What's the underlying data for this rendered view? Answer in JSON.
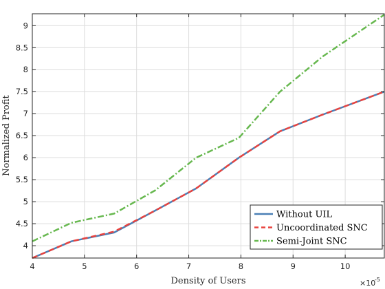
{
  "chart_data": {
    "type": "line",
    "title": "",
    "xlabel": "Density of Users",
    "ylabel": "Normalized Profit",
    "x_exponent": {
      "base": "×10",
      "power": "-5"
    },
    "xlim": [
      4,
      10.75
    ],
    "ylim": [
      3.72,
      9.27
    ],
    "xticks": [
      4,
      5,
      6,
      7,
      8,
      9,
      10
    ],
    "yticks": [
      4,
      4.5,
      5,
      5.5,
      6,
      6.5,
      7,
      7.5,
      8,
      8.5,
      9
    ],
    "ytick_labels": [
      "4",
      "4.5",
      "5",
      "5.5",
      "6",
      "6.5",
      "7",
      "7.5",
      "8",
      "8.5",
      "9"
    ],
    "grid": true,
    "legend_position": "bottom-right",
    "x": [
      4,
      4.75,
      5.57,
      6.36,
      7.14,
      7.96,
      8.75,
      9.57,
      10.75
    ],
    "series": [
      {
        "name": "Without UIL",
        "color": "#4a7fb5",
        "dash": "solid",
        "values": [
          3.72,
          4.1,
          4.3,
          4.8,
          5.3,
          6.0,
          6.6,
          6.98,
          7.5
        ]
      },
      {
        "name": "Uncoordinated SNC",
        "color": "#e8433f",
        "dash": "dashed",
        "values": [
          3.72,
          4.1,
          4.32,
          4.8,
          5.3,
          6.0,
          6.6,
          6.98,
          7.5
        ]
      },
      {
        "name": "Semi-Joint SNC",
        "color": "#67b84f",
        "dash": "dashdot",
        "values": [
          4.1,
          4.52,
          4.73,
          5.26,
          6.0,
          6.45,
          7.5,
          8.3,
          9.25
        ]
      }
    ]
  }
}
